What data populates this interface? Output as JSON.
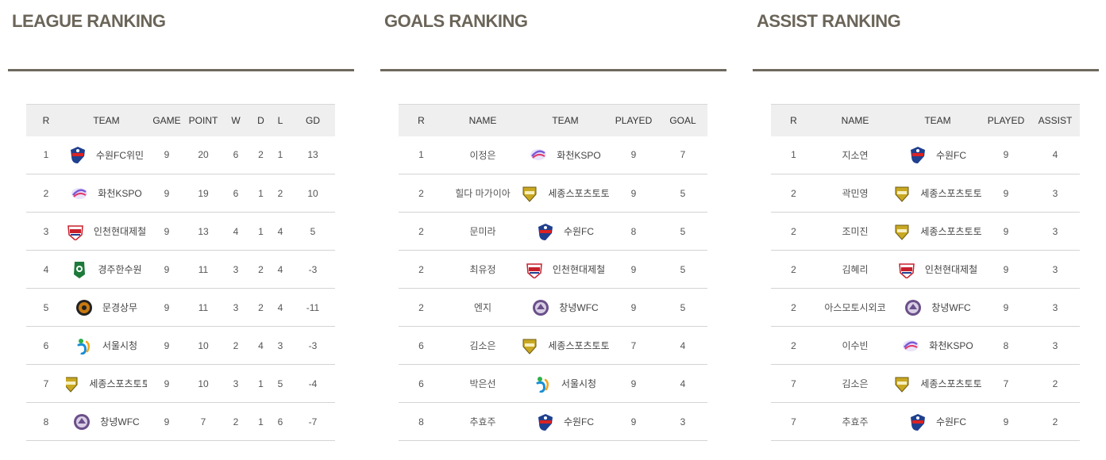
{
  "logo_colors": {
    "suwon": "#1f3f8f",
    "hwacheon": "#7a5ad6",
    "incheon": "#c8202c",
    "gyeongju": "#1d7a3a",
    "mungyeong": "#c87a10",
    "seoul": "#1a8ed6",
    "sejong": "#c9a822",
    "changnyeong": "#6a4f8a"
  },
  "league": {
    "title": "LEAGUE RANKING",
    "headers": [
      "R",
      "TEAM",
      "GAME",
      "POINT",
      "W",
      "D",
      "L",
      "GD"
    ],
    "rows": [
      {
        "rank": "1",
        "logo": "suwon",
        "team": "수원FC위민",
        "game": "9",
        "point": "20",
        "w": "6",
        "d": "2",
        "l": "1",
        "gd": "13"
      },
      {
        "rank": "2",
        "logo": "hwacheon",
        "team": "화천KSPO",
        "game": "9",
        "point": "19",
        "w": "6",
        "d": "1",
        "l": "2",
        "gd": "10"
      },
      {
        "rank": "3",
        "logo": "incheon",
        "team": "인천현대제철",
        "game": "9",
        "point": "13",
        "w": "4",
        "d": "1",
        "l": "4",
        "gd": "5"
      },
      {
        "rank": "4",
        "logo": "gyeongju",
        "team": "경주한수원",
        "game": "9",
        "point": "11",
        "w": "3",
        "d": "2",
        "l": "4",
        "gd": "-3"
      },
      {
        "rank": "5",
        "logo": "mungyeong",
        "team": "문경상무",
        "game": "9",
        "point": "11",
        "w": "3",
        "d": "2",
        "l": "4",
        "gd": "-11"
      },
      {
        "rank": "6",
        "logo": "seoul",
        "team": "서울시청",
        "game": "9",
        "point": "10",
        "w": "2",
        "d": "4",
        "l": "3",
        "gd": "-3"
      },
      {
        "rank": "7",
        "logo": "sejong",
        "team": "세종스포츠토토",
        "game": "9",
        "point": "10",
        "w": "3",
        "d": "1",
        "l": "5",
        "gd": "-4"
      },
      {
        "rank": "8",
        "logo": "changnyeong",
        "team": "창녕WFC",
        "game": "9",
        "point": "7",
        "w": "2",
        "d": "1",
        "l": "6",
        "gd": "-7"
      }
    ]
  },
  "goals": {
    "title": "GOALS RANKING",
    "headers": [
      "R",
      "NAME",
      "TEAM",
      "PLAYED",
      "GOAL"
    ],
    "rows": [
      {
        "rank": "1",
        "name": "이정은",
        "logo": "hwacheon",
        "team": "화천KSPO",
        "played": "9",
        "value": "7"
      },
      {
        "rank": "2",
        "name": "힐다 마가이아",
        "logo": "sejong",
        "team": "세종스포츠토토",
        "played": "9",
        "value": "5"
      },
      {
        "rank": "2",
        "name": "문미라",
        "logo": "suwon",
        "team": "수원FC",
        "played": "8",
        "value": "5"
      },
      {
        "rank": "2",
        "name": "최유정",
        "logo": "incheon",
        "team": "인천현대제철",
        "played": "9",
        "value": "5"
      },
      {
        "rank": "2",
        "name": "엔지",
        "logo": "changnyeong",
        "team": "창녕WFC",
        "played": "9",
        "value": "5"
      },
      {
        "rank": "6",
        "name": "김소은",
        "logo": "sejong",
        "team": "세종스포츠토토",
        "played": "7",
        "value": "4"
      },
      {
        "rank": "6",
        "name": "박은선",
        "logo": "seoul",
        "team": "서울시청",
        "played": "9",
        "value": "4"
      },
      {
        "rank": "8",
        "name": "추효주",
        "logo": "suwon",
        "team": "수원FC",
        "played": "9",
        "value": "3"
      }
    ]
  },
  "assist": {
    "title": "ASSIST RANKING",
    "headers": [
      "R",
      "NAME",
      "TEAM",
      "PLAYED",
      "ASSIST"
    ],
    "rows": [
      {
        "rank": "1",
        "name": "지소연",
        "logo": "suwon",
        "team": "수원FC",
        "played": "9",
        "value": "4"
      },
      {
        "rank": "2",
        "name": "곽민영",
        "logo": "sejong",
        "team": "세종스포츠토토",
        "played": "9",
        "value": "3"
      },
      {
        "rank": "2",
        "name": "조미진",
        "logo": "sejong",
        "team": "세종스포츠토토",
        "played": "9",
        "value": "3"
      },
      {
        "rank": "2",
        "name": "김혜리",
        "logo": "incheon",
        "team": "인천현대제철",
        "played": "9",
        "value": "3"
      },
      {
        "rank": "2",
        "name": "아스모토시외코",
        "logo": "changnyeong",
        "team": "창녕WFC",
        "played": "9",
        "value": "3"
      },
      {
        "rank": "2",
        "name": "이수빈",
        "logo": "hwacheon",
        "team": "화천KSPO",
        "played": "8",
        "value": "3"
      },
      {
        "rank": "7",
        "name": "김소은",
        "logo": "sejong",
        "team": "세종스포츠토토",
        "played": "7",
        "value": "2"
      },
      {
        "rank": "7",
        "name": "추효주",
        "logo": "suwon",
        "team": "수원FC",
        "played": "9",
        "value": "2"
      }
    ]
  }
}
